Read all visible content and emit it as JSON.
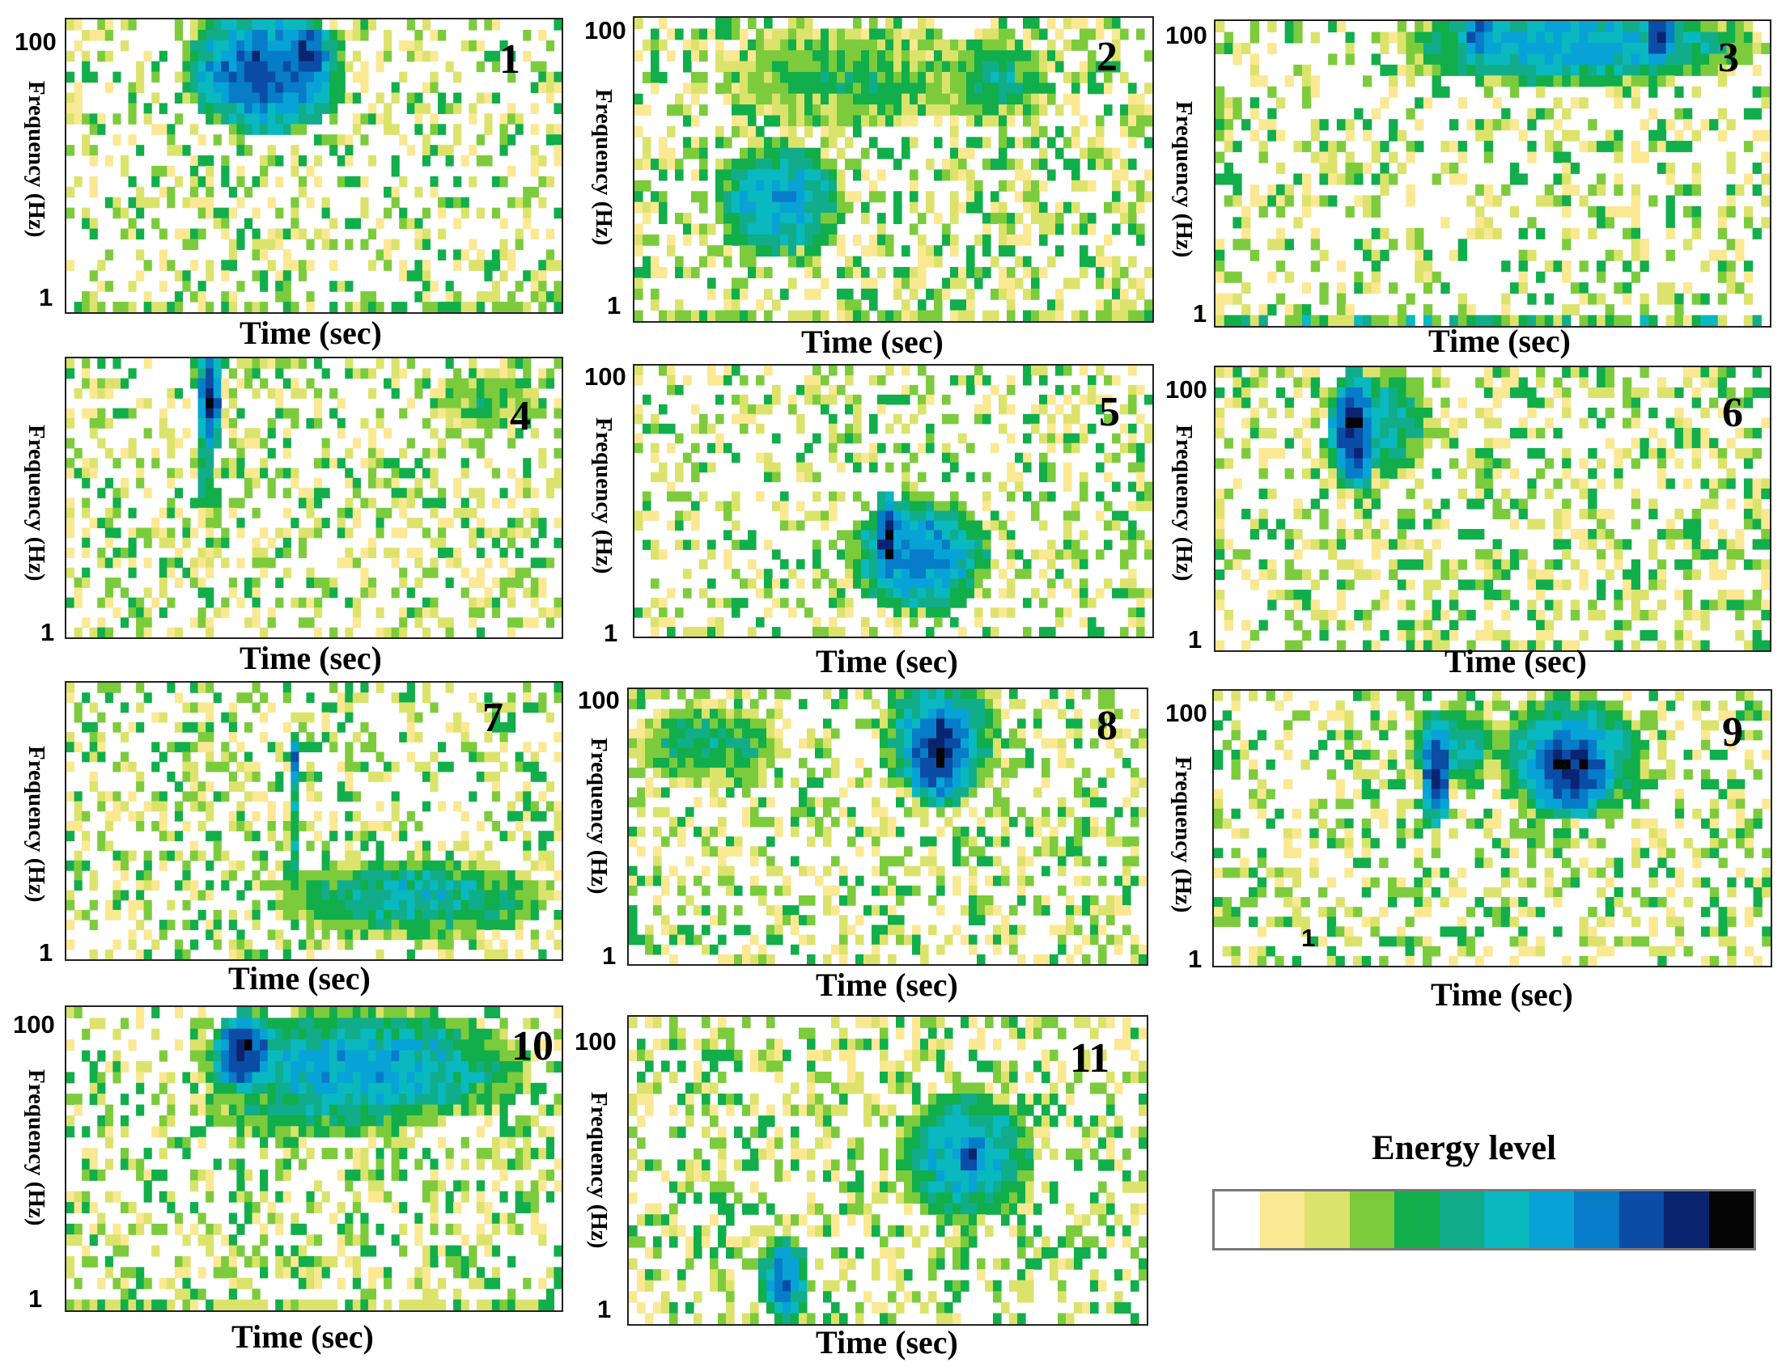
{
  "figure": {
    "legend_title": "Energy level",
    "legend_colors": [
      "#ffffff",
      "#fbe893",
      "#dbe36c",
      "#7ccb3d",
      "#11ae4b",
      "#11ad8a",
      "#0ab8c0",
      "#08a3d6",
      "#077cc8",
      "#0a4ca6",
      "#0a2470",
      "#050505"
    ]
  },
  "chart_data": [
    {
      "type": "heatmap",
      "panel": "1",
      "xlabel": "Time (sec)",
      "ylabel": "Frequency (Hz)",
      "ytick_top": "100",
      "ytick_bottom": "1",
      "extra_label": "",
      "cols": 64,
      "rows": 28,
      "seed": 11,
      "background": 0.38,
      "bottom_band": 3,
      "hotspots": [
        [
          0.4,
          0.18,
          0.17,
          0.22,
          10
        ],
        [
          0.48,
          0.12,
          0.06,
          0.12,
          11
        ],
        [
          0.3,
          0.1,
          0.05,
          0.12,
          6
        ]
      ]
    },
    {
      "type": "heatmap",
      "panel": "2",
      "xlabel": "Time (sec)",
      "ylabel": "Frequency (Hz)",
      "ytick_top": "100",
      "ytick_bottom": "1",
      "extra_label": "",
      "cols": 64,
      "rows": 28,
      "seed": 22,
      "background": 0.45,
      "bottom_band": 2,
      "hotspots": [
        [
          0.28,
          0.6,
          0.13,
          0.2,
          8
        ],
        [
          0.4,
          0.2,
          0.25,
          0.18,
          5
        ],
        [
          0.7,
          0.2,
          0.1,
          0.15,
          6
        ]
      ]
    },
    {
      "type": "heatmap",
      "panel": "3",
      "xlabel": "Time (sec)",
      "ylabel": "Frequency (Hz)",
      "ytick_top": "100",
      "ytick_bottom": "1",
      "extra_label": "",
      "cols": 64,
      "rows": 28,
      "seed": 33,
      "background": 0.35,
      "bottom_band": 5,
      "hotspots": [
        [
          0.65,
          0.08,
          0.33,
          0.14,
          8
        ],
        [
          0.8,
          0.05,
          0.03,
          0.1,
          11
        ],
        [
          0.48,
          0.05,
          0.04,
          0.09,
          10
        ]
      ]
    },
    {
      "type": "heatmap",
      "panel": "4",
      "xlabel": "Time (sec)",
      "ylabel": "Frequency (Hz)",
      "ytick_top": "",
      "ytick_bottom": "1",
      "extra_label": "",
      "cols": 64,
      "rows": 28,
      "seed": 44,
      "background": 0.38,
      "bottom_band": 0,
      "hotspots": [
        [
          0.29,
          0.14,
          0.025,
          0.22,
          11
        ],
        [
          0.28,
          0.4,
          0.02,
          0.18,
          6
        ],
        [
          0.85,
          0.15,
          0.12,
          0.1,
          5
        ]
      ]
    },
    {
      "type": "heatmap",
      "panel": "5",
      "xlabel": "Time (sec)",
      "ylabel": "Frequency (Hz)",
      "ytick_top": "100",
      "ytick_bottom": "1",
      "extra_label": "",
      "cols": 64,
      "rows": 28,
      "seed": 55,
      "background": 0.38,
      "bottom_band": 0,
      "hotspots": [
        [
          0.55,
          0.7,
          0.14,
          0.22,
          9
        ],
        [
          0.49,
          0.65,
          0.03,
          0.2,
          11
        ]
      ]
    },
    {
      "type": "heatmap",
      "panel": "6",
      "xlabel": "Time (sec)",
      "ylabel": "Frequency (Hz)",
      "ytick_top": "100",
      "ytick_bottom": "1",
      "extra_label": "",
      "cols": 64,
      "rows": 28,
      "seed": 66,
      "background": 0.4,
      "bottom_band": 0,
      "hotspots": [
        [
          0.25,
          0.22,
          0.05,
          0.22,
          11
        ],
        [
          0.3,
          0.2,
          0.09,
          0.2,
          7
        ]
      ]
    },
    {
      "type": "heatmap",
      "panel": "7",
      "xlabel": "Time (sec)",
      "ylabel": "Frequency (Hz)",
      "ytick_top": "",
      "ytick_bottom": "1",
      "extra_label": "",
      "cols": 64,
      "rows": 28,
      "seed": 77,
      "background": 0.4,
      "bottom_band": 0,
      "hotspots": [
        [
          0.46,
          0.28,
          0.015,
          0.1,
          10
        ],
        [
          0.7,
          0.78,
          0.28,
          0.15,
          7
        ],
        [
          0.46,
          0.5,
          0.015,
          0.3,
          6
        ]
      ]
    },
    {
      "type": "heatmap",
      "panel": "8",
      "xlabel": "Time (sec)",
      "ylabel": "Frequency (Hz)",
      "ytick_top": "100",
      "ytick_bottom": "1",
      "extra_label": "",
      "cols": 64,
      "rows": 28,
      "seed": 88,
      "background": 0.42,
      "bottom_band": 0,
      "hotspots": [
        [
          0.6,
          0.22,
          0.08,
          0.22,
          11
        ],
        [
          0.6,
          0.18,
          0.12,
          0.25,
          8
        ],
        [
          0.15,
          0.2,
          0.15,
          0.15,
          6
        ]
      ]
    },
    {
      "type": "heatmap",
      "panel": "9",
      "xlabel": "Time (sec)",
      "ylabel": "Frequency (Hz)",
      "ytick_top": "100",
      "ytick_bottom": "1",
      "extra_label": "1",
      "cols": 64,
      "rows": 28,
      "seed": 99,
      "background": 0.38,
      "bottom_band": 0,
      "hotspots": [
        [
          0.64,
          0.28,
          0.09,
          0.2,
          11
        ],
        [
          0.4,
          0.28,
          0.03,
          0.22,
          11
        ],
        [
          0.64,
          0.24,
          0.14,
          0.24,
          8
        ],
        [
          0.43,
          0.2,
          0.09,
          0.15,
          7
        ]
      ]
    },
    {
      "type": "heatmap",
      "panel": "10",
      "xlabel": "Time (sec)",
      "ylabel": "Frequency (Hz)",
      "ytick_top": "100",
      "ytick_bottom": "1",
      "extra_label": "",
      "cols": 64,
      "rows": 28,
      "seed": 110,
      "background": 0.38,
      "bottom_band": 1,
      "hotspots": [
        [
          0.36,
          0.15,
          0.07,
          0.14,
          11
        ],
        [
          0.6,
          0.2,
          0.34,
          0.2,
          8
        ],
        [
          0.5,
          0.32,
          0.25,
          0.12,
          6
        ]
      ]
    },
    {
      "type": "heatmap",
      "panel": "11",
      "xlabel": "Time (sec)",
      "ylabel": "Frequency (Hz)",
      "ytick_top": "100",
      "ytick_bottom": "1",
      "extra_label": "",
      "cols": 64,
      "rows": 28,
      "seed": 121,
      "background": 0.4,
      "bottom_band": 0,
      "hotspots": [
        [
          0.65,
          0.45,
          0.14,
          0.22,
          8
        ],
        [
          0.66,
          0.46,
          0.03,
          0.08,
          11
        ],
        [
          0.3,
          0.85,
          0.05,
          0.15,
          9
        ],
        [
          0.6,
          0.06,
          0.3,
          0.07,
          1
        ]
      ]
    }
  ]
}
